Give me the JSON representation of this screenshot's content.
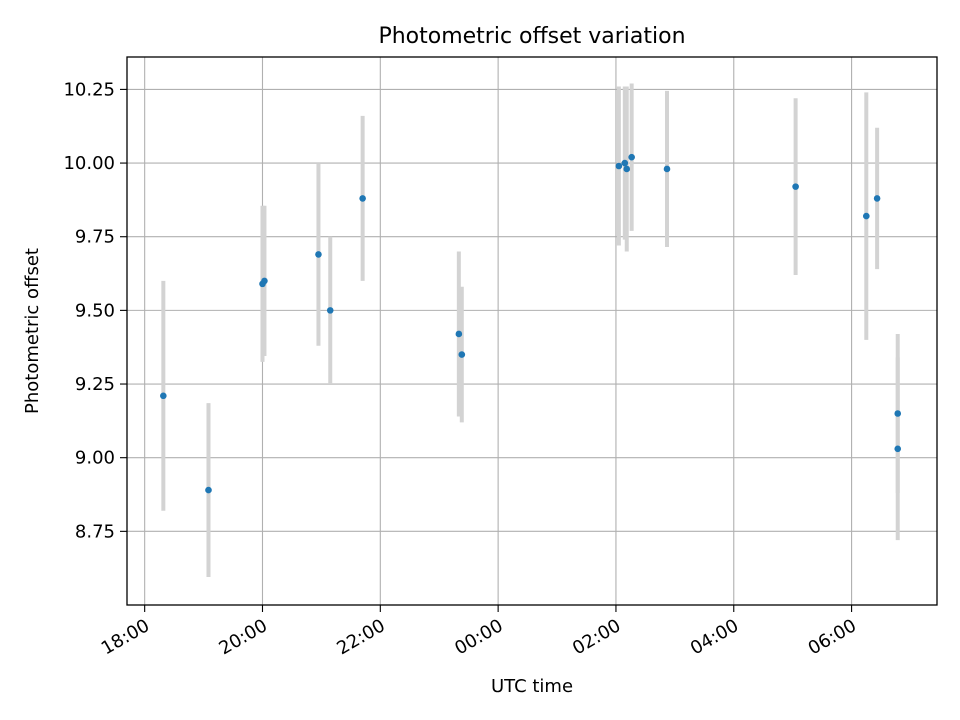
{
  "chart_data": {
    "type": "scatter",
    "title": "Photometric offset variation",
    "xlabel": "UTC time",
    "ylabel": "Photometric offset",
    "x_axis_kind": "time",
    "xlim": [
      "17:42",
      "07:27"
    ],
    "ylim": [
      8.5,
      10.36
    ],
    "grid": true,
    "x_ticks": [
      {
        "label": "18:00",
        "value": "18:00"
      },
      {
        "label": "20:00",
        "value": "20:00"
      },
      {
        "label": "22:00",
        "value": "22:00"
      },
      {
        "label": "00:00",
        "value": "00:00"
      },
      {
        "label": "02:00",
        "value": "02:00"
      },
      {
        "label": "04:00",
        "value": "04:00"
      },
      {
        "label": "06:00",
        "value": "06:00"
      }
    ],
    "y_ticks": [
      {
        "label": "8.75",
        "value": 8.75
      },
      {
        "label": "9.00",
        "value": 9.0
      },
      {
        "label": "9.25",
        "value": 9.25
      },
      {
        "label": "9.50",
        "value": 9.5
      },
      {
        "label": "9.75",
        "value": 9.75
      },
      {
        "label": "10.00",
        "value": 10.0
      },
      {
        "label": "10.25",
        "value": 10.25
      }
    ],
    "colors": {
      "point": "#1f77b4",
      "errorbar": "#d3d3d3",
      "grid": "#b0b0b0"
    },
    "points": [
      {
        "x": "18:19",
        "y": 9.21,
        "err": 0.39
      },
      {
        "x": "19:05",
        "y": 8.89,
        "err": 0.295
      },
      {
        "x": "20:00",
        "y": 9.59,
        "err": 0.265
      },
      {
        "x": "20:02",
        "y": 9.6,
        "err": 0.255
      },
      {
        "x": "20:57",
        "y": 9.69,
        "err": 0.31
      },
      {
        "x": "21:09",
        "y": 9.5,
        "err": 0.25
      },
      {
        "x": "21:42",
        "y": 9.88,
        "err": 0.28
      },
      {
        "x": "23:20",
        "y": 9.42,
        "err": 0.28
      },
      {
        "x": "23:23",
        "y": 9.35,
        "err": 0.23
      },
      {
        "x": "02:03",
        "y": 9.99,
        "err": 0.27
      },
      {
        "x": "02:09",
        "y": 10.0,
        "err": 0.26
      },
      {
        "x": "02:11",
        "y": 9.98,
        "err": 0.28
      },
      {
        "x": "02:16",
        "y": 10.02,
        "err": 0.25
      },
      {
        "x": "02:52",
        "y": 9.98,
        "err": 0.265
      },
      {
        "x": "05:03",
        "y": 9.92,
        "err": 0.3
      },
      {
        "x": "06:15",
        "y": 9.82,
        "err": 0.42
      },
      {
        "x": "06:26",
        "y": 9.88,
        "err": 0.24
      },
      {
        "x": "06:47",
        "y": 9.15,
        "err": 0.27
      },
      {
        "x": "06:47",
        "y": 9.03,
        "err": 0.31
      }
    ]
  }
}
